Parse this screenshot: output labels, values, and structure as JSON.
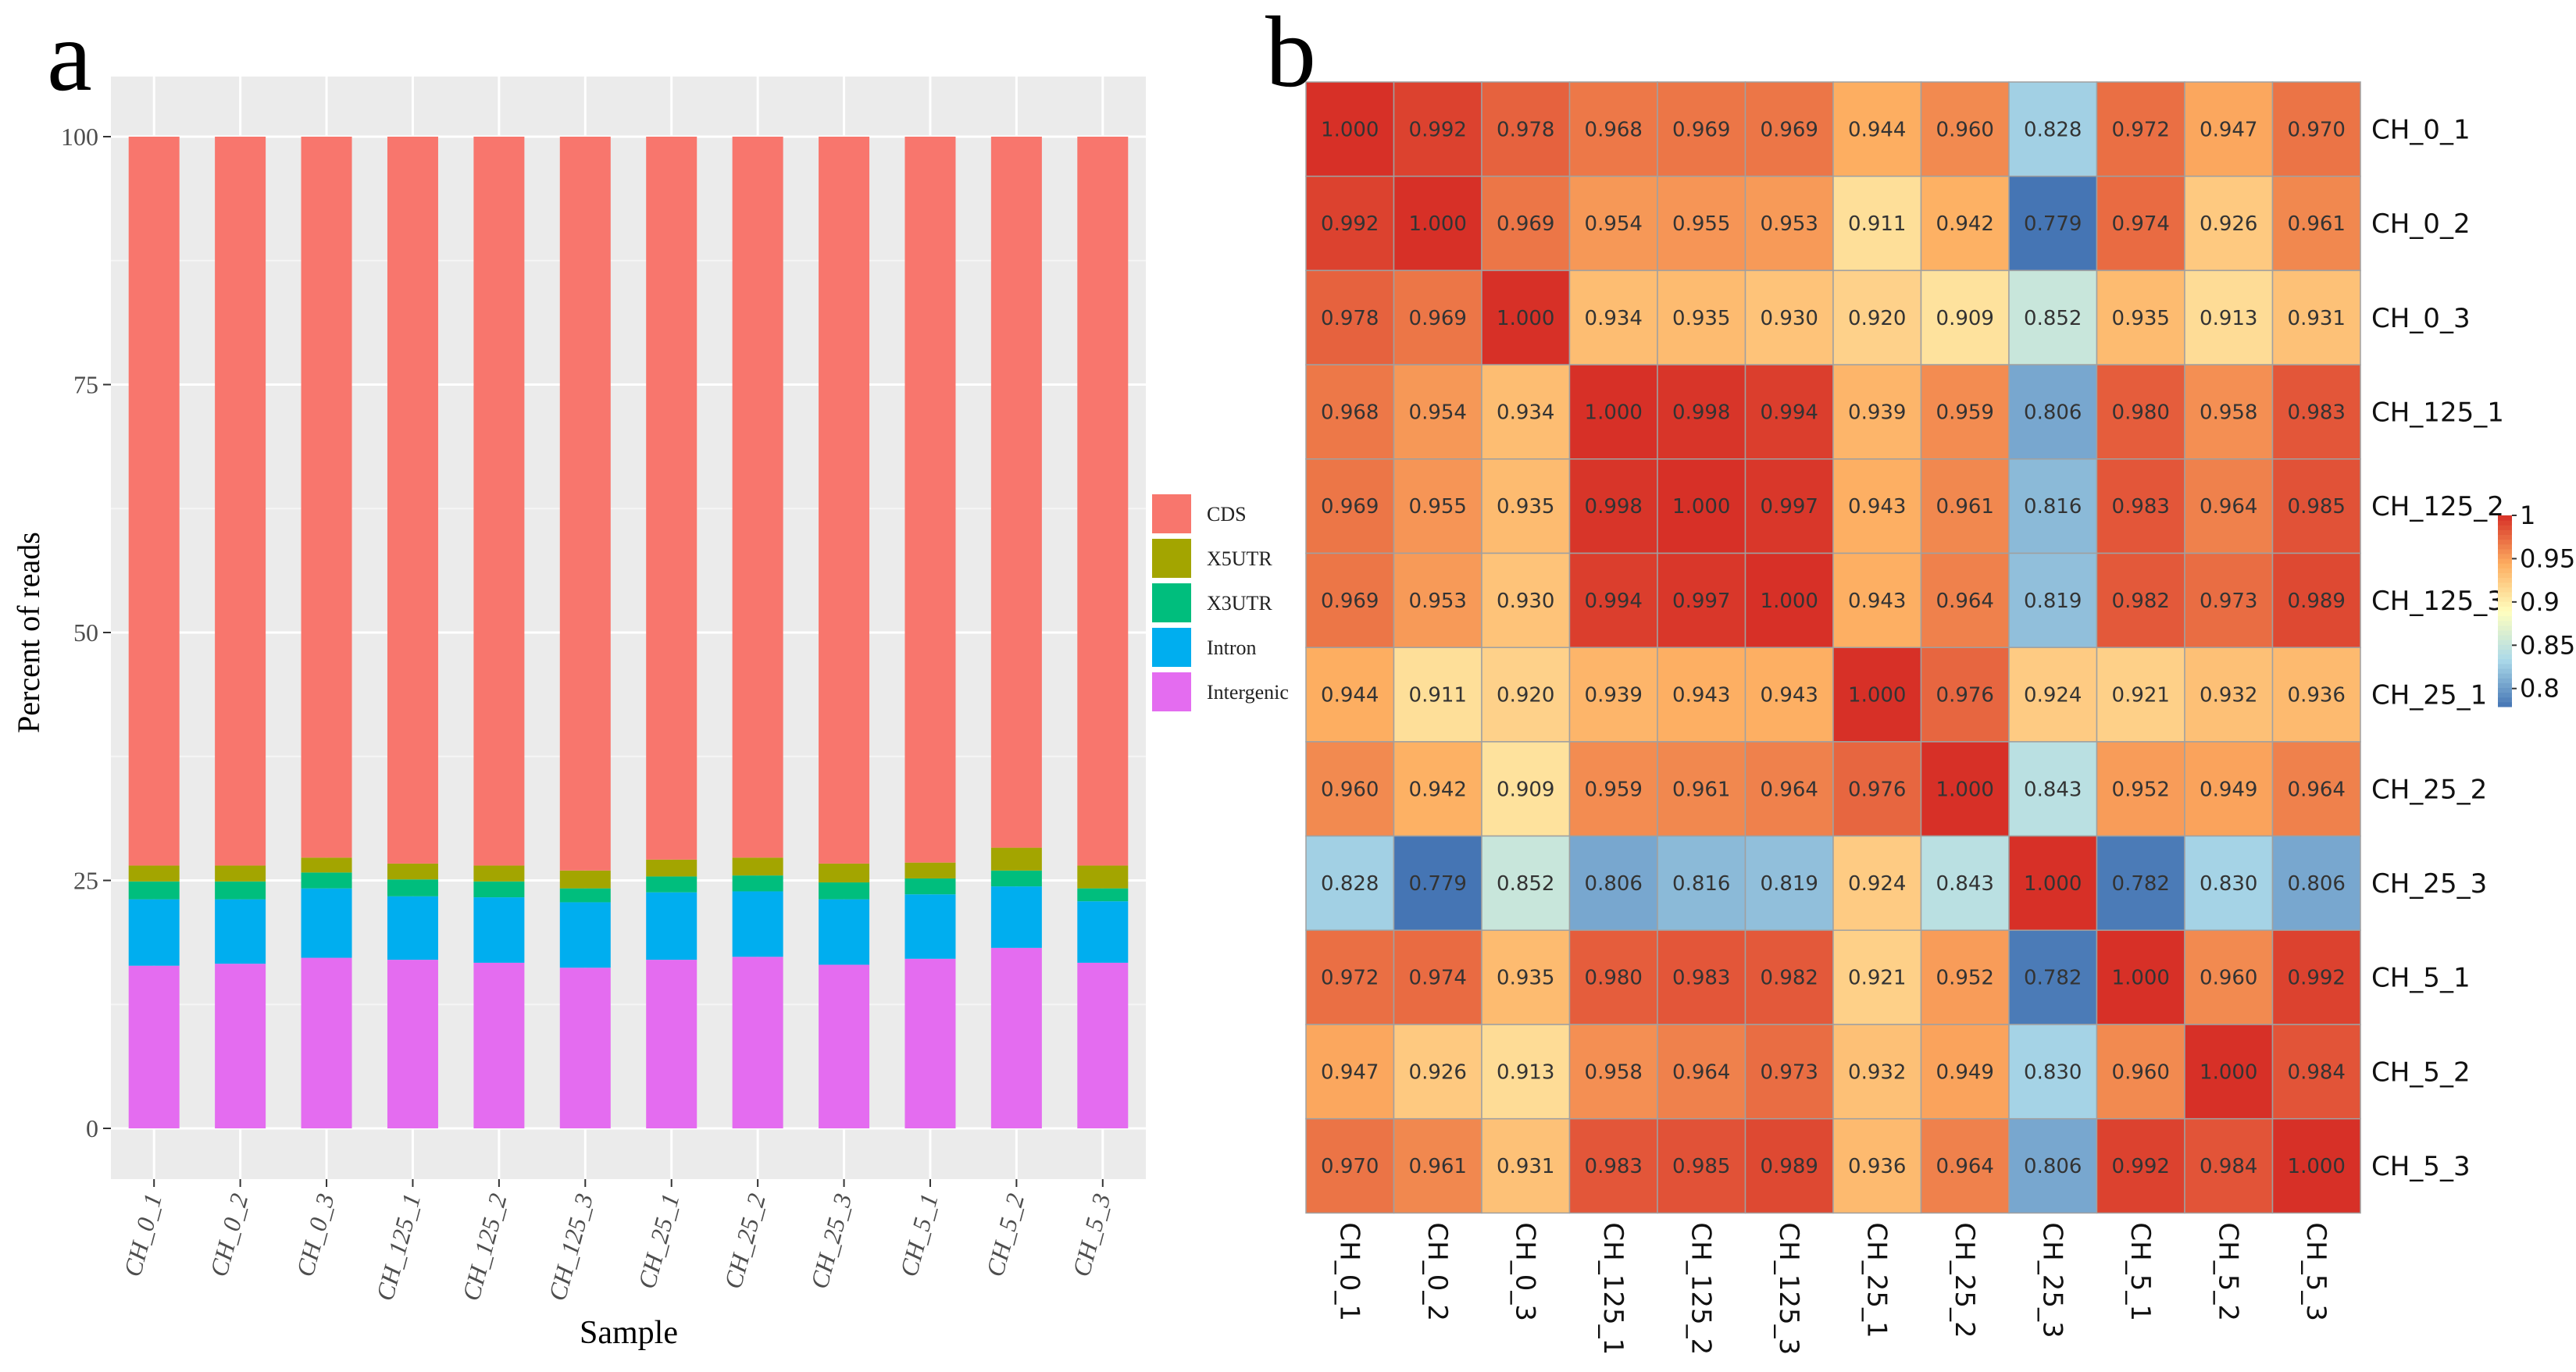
{
  "panels": {
    "a": "a",
    "b": "b"
  },
  "chart_data": [
    {
      "type": "bar",
      "stacked": true,
      "title": "",
      "xlabel": "Sample",
      "ylabel": "Percent of reads",
      "ylim": [
        0,
        100
      ],
      "yticks": [
        "0",
        "25",
        "50",
        "75",
        "100"
      ],
      "categories": [
        "CH_0_1",
        "CH_0_2",
        "CH_0_3",
        "CH_125_1",
        "CH_125_2",
        "CH_125_3",
        "CH_25_1",
        "CH_25_2",
        "CH_25_3",
        "CH_5_1",
        "CH_5_2",
        "CH_5_3"
      ],
      "series": [
        {
          "name": "Intergenic",
          "color": "#E46CF0",
          "values": [
            16.4,
            16.6,
            17.2,
            17.0,
            16.7,
            16.2,
            17.0,
            17.3,
            16.5,
            17.1,
            18.2,
            16.7
          ]
        },
        {
          "name": "Intron",
          "color": "#00AEEF",
          "values": [
            6.7,
            6.5,
            7.0,
            6.4,
            6.6,
            6.6,
            6.8,
            6.6,
            6.6,
            6.5,
            6.2,
            6.2
          ]
        },
        {
          "name": "X3UTR",
          "color": "#00BE7D",
          "values": [
            1.8,
            1.8,
            1.6,
            1.7,
            1.6,
            1.4,
            1.6,
            1.6,
            1.7,
            1.6,
            1.6,
            1.3
          ]
        },
        {
          "name": "X5UTR",
          "color": "#A3A500",
          "values": [
            1.6,
            1.6,
            1.5,
            1.6,
            1.6,
            1.8,
            1.7,
            1.8,
            1.9,
            1.6,
            2.3,
            2.3
          ]
        },
        {
          "name": "CDS",
          "color": "#F8766D",
          "values": [
            73.5,
            73.5,
            72.7,
            73.3,
            73.5,
            74.0,
            72.9,
            72.7,
            73.3,
            73.2,
            71.7,
            73.5
          ]
        }
      ],
      "legend": [
        "CDS",
        "X5UTR",
        "X3UTR",
        "Intron",
        "Intergenic"
      ],
      "legend_position": "right",
      "grid": true
    },
    {
      "type": "heatmap",
      "rows": [
        "CH_0_1",
        "CH_0_2",
        "CH_0_3",
        "CH_125_1",
        "CH_125_2",
        "CH_125_3",
        "CH_25_1",
        "CH_25_2",
        "CH_25_3",
        "CH_5_1",
        "CH_5_2",
        "CH_5_3"
      ],
      "cols": [
        "CH_0_1",
        "CH_0_2",
        "CH_0_3",
        "CH_125_1",
        "CH_125_2",
        "CH_125_3",
        "CH_25_1",
        "CH_25_2",
        "CH_25_3",
        "CH_5_1",
        "CH_5_2",
        "CH_5_3"
      ],
      "values": [
        [
          "1.000",
          "0.992",
          "0.978",
          "0.968",
          "0.969",
          "0.969",
          "0.944",
          "0.960",
          "0.828",
          "0.972",
          "0.947",
          "0.970"
        ],
        [
          "0.992",
          "1.000",
          "0.969",
          "0.954",
          "0.955",
          "0.953",
          "0.911",
          "0.942",
          "0.779",
          "0.974",
          "0.926",
          "0.961"
        ],
        [
          "0.978",
          "0.969",
          "1.000",
          "0.934",
          "0.935",
          "0.930",
          "0.920",
          "0.909",
          "0.852",
          "0.935",
          "0.913",
          "0.931"
        ],
        [
          "0.968",
          "0.954",
          "0.934",
          "1.000",
          "0.998",
          "0.994",
          "0.939",
          "0.959",
          "0.806",
          "0.980",
          "0.958",
          "0.983"
        ],
        [
          "0.969",
          "0.955",
          "0.935",
          "0.998",
          "1.000",
          "0.997",
          "0.943",
          "0.961",
          "0.816",
          "0.983",
          "0.964",
          "0.985"
        ],
        [
          "0.969",
          "0.953",
          "0.930",
          "0.994",
          "0.997",
          "1.000",
          "0.943",
          "0.964",
          "0.819",
          "0.982",
          "0.973",
          "0.989"
        ],
        [
          "0.944",
          "0.911",
          "0.920",
          "0.939",
          "0.943",
          "0.943",
          "1.000",
          "0.976",
          "0.924",
          "0.921",
          "0.932",
          "0.936"
        ],
        [
          "0.960",
          "0.942",
          "0.909",
          "0.959",
          "0.961",
          "0.964",
          "0.976",
          "1.000",
          "0.843",
          "0.952",
          "0.949",
          "0.964"
        ],
        [
          "0.828",
          "0.779",
          "0.852",
          "0.806",
          "0.816",
          "0.819",
          "0.924",
          "0.843",
          "1.000",
          "0.782",
          "0.830",
          "0.806"
        ],
        [
          "0.972",
          "0.974",
          "0.935",
          "0.980",
          "0.983",
          "0.982",
          "0.921",
          "0.952",
          "0.782",
          "1.000",
          "0.960",
          "0.992"
        ],
        [
          "0.947",
          "0.926",
          "0.913",
          "0.958",
          "0.964",
          "0.973",
          "0.932",
          "0.949",
          "0.830",
          "0.960",
          "1.000",
          "0.984"
        ],
        [
          "0.970",
          "0.961",
          "0.931",
          "0.983",
          "0.985",
          "0.989",
          "0.936",
          "0.964",
          "0.806",
          "0.992",
          "0.984",
          "1.000"
        ]
      ],
      "color_scale": {
        "min": 0.779,
        "max": 1.0,
        "stops": [
          {
            "v": 0.779,
            "c": "#4575B4"
          },
          {
            "v": 0.833,
            "c": "#ABD9E9"
          },
          {
            "v": 0.889,
            "c": "#FFFFBF"
          },
          {
            "v": 0.944,
            "c": "#FDAE61"
          },
          {
            "v": 1.0,
            "c": "#D73027"
          }
        ],
        "legend_ticks": [
          "1",
          "0.95",
          "0.9",
          "0.85",
          "0.8"
        ]
      }
    }
  ]
}
